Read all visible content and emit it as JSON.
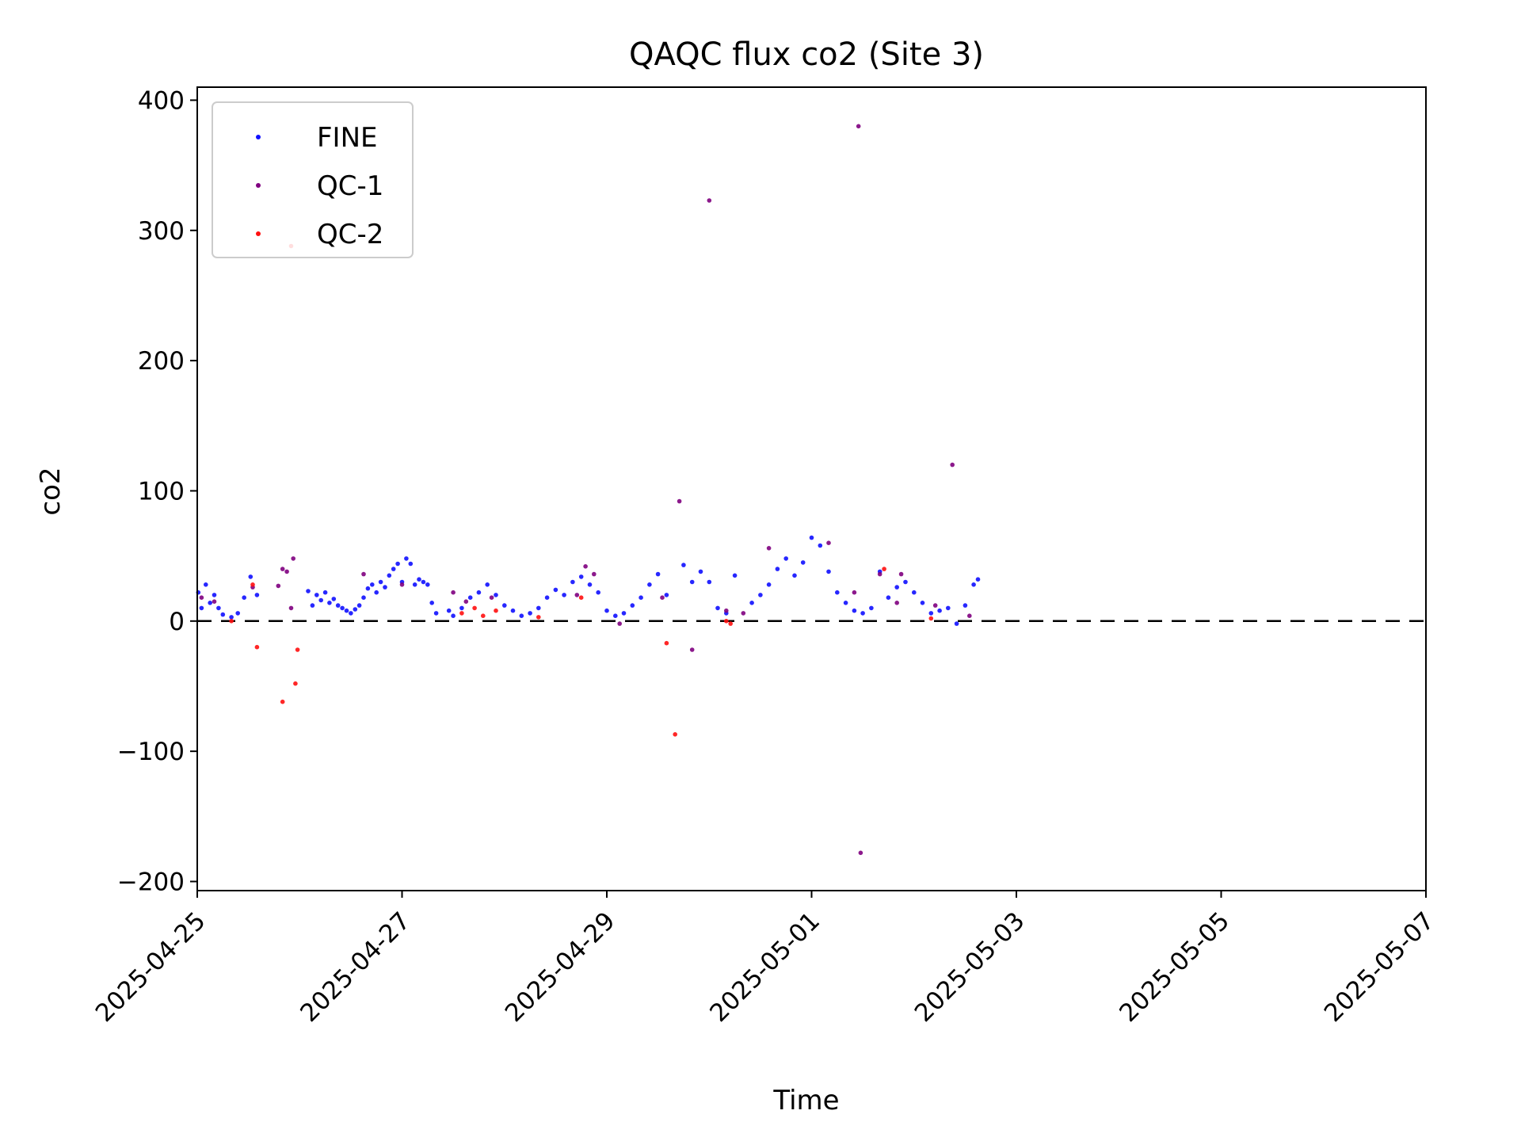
{
  "chart_data": {
    "type": "scatter",
    "title": "QAQC flux co2 (Site 3)",
    "xlabel": "Time",
    "ylabel": "co2",
    "x_type": "date",
    "xlim": [
      "2025-04-25T00:00",
      "2025-05-07T00:00"
    ],
    "ylim": [
      -207,
      410
    ],
    "x_ticks": [
      "2025-04-25",
      "2025-04-27",
      "2025-04-29",
      "2025-05-01",
      "2025-05-03",
      "2025-05-05",
      "2025-05-07"
    ],
    "y_ticks": [
      -200,
      -100,
      0,
      100,
      200,
      300,
      400
    ],
    "y_tick_labels": [
      "−200",
      "−100",
      "0",
      "100",
      "200",
      "300",
      "400"
    ],
    "grid": false,
    "legend_position": "top-left",
    "reference_line": {
      "y": 0,
      "style": "dashed",
      "color": "#000000"
    },
    "series": [
      {
        "name": "FINE",
        "color": "#1010ff",
        "points": [
          [
            "2025-04-25T00:15",
            22
          ],
          [
            "2025-04-25T01:00",
            10
          ],
          [
            "2025-04-25T02:00",
            28
          ],
          [
            "2025-04-25T03:00",
            14
          ],
          [
            "2025-04-25T04:00",
            20
          ],
          [
            "2025-04-25T05:00",
            10
          ],
          [
            "2025-04-25T06:00",
            5
          ],
          [
            "2025-04-25T08:00",
            3
          ],
          [
            "2025-04-25T09:30",
            6
          ],
          [
            "2025-04-25T11:00",
            18
          ],
          [
            "2025-04-25T12:30",
            34
          ],
          [
            "2025-04-25T14:00",
            20
          ],
          [
            "2025-04-26T02:00",
            23
          ],
          [
            "2025-04-26T03:00",
            12
          ],
          [
            "2025-04-26T04:00",
            20
          ],
          [
            "2025-04-26T05:00",
            16
          ],
          [
            "2025-04-26T06:00",
            22
          ],
          [
            "2025-04-26T07:00",
            14
          ],
          [
            "2025-04-26T08:00",
            17
          ],
          [
            "2025-04-26T09:00",
            12
          ],
          [
            "2025-04-26T10:00",
            10
          ],
          [
            "2025-04-26T11:00",
            8
          ],
          [
            "2025-04-26T12:00",
            6
          ],
          [
            "2025-04-26T13:00",
            9
          ],
          [
            "2025-04-26T14:00",
            12
          ],
          [
            "2025-04-26T15:00",
            18
          ],
          [
            "2025-04-26T16:00",
            25
          ],
          [
            "2025-04-26T17:00",
            28
          ],
          [
            "2025-04-26T18:00",
            22
          ],
          [
            "2025-04-26T19:00",
            30
          ],
          [
            "2025-04-26T20:00",
            26
          ],
          [
            "2025-04-26T21:00",
            35
          ],
          [
            "2025-04-26T22:00",
            40
          ],
          [
            "2025-04-26T23:00",
            44
          ],
          [
            "2025-04-27T00:00",
            30
          ],
          [
            "2025-04-27T01:00",
            48
          ],
          [
            "2025-04-27T02:00",
            44
          ],
          [
            "2025-04-27T03:00",
            28
          ],
          [
            "2025-04-27T04:00",
            32
          ],
          [
            "2025-04-27T05:00",
            30
          ],
          [
            "2025-04-27T06:00",
            28
          ],
          [
            "2025-04-27T07:00",
            14
          ],
          [
            "2025-04-27T08:00",
            6
          ],
          [
            "2025-04-27T11:00",
            8
          ],
          [
            "2025-04-27T12:00",
            4
          ],
          [
            "2025-04-27T14:00",
            10
          ],
          [
            "2025-04-27T16:00",
            18
          ],
          [
            "2025-04-27T18:00",
            22
          ],
          [
            "2025-04-27T20:00",
            28
          ],
          [
            "2025-04-27T22:00",
            20
          ],
          [
            "2025-04-28T00:00",
            12
          ],
          [
            "2025-04-28T02:00",
            8
          ],
          [
            "2025-04-28T04:00",
            4
          ],
          [
            "2025-04-28T06:00",
            6
          ],
          [
            "2025-04-28T08:00",
            10
          ],
          [
            "2025-04-28T10:00",
            18
          ],
          [
            "2025-04-28T12:00",
            24
          ],
          [
            "2025-04-28T14:00",
            20
          ],
          [
            "2025-04-28T16:00",
            30
          ],
          [
            "2025-04-28T18:00",
            34
          ],
          [
            "2025-04-28T20:00",
            28
          ],
          [
            "2025-04-28T22:00",
            22
          ],
          [
            "2025-04-29T00:00",
            8
          ],
          [
            "2025-04-29T02:00",
            4
          ],
          [
            "2025-04-29T04:00",
            6
          ],
          [
            "2025-04-29T06:00",
            12
          ],
          [
            "2025-04-29T08:00",
            18
          ],
          [
            "2025-04-29T10:00",
            28
          ],
          [
            "2025-04-29T12:00",
            36
          ],
          [
            "2025-04-29T14:00",
            20
          ],
          [
            "2025-04-29T18:00",
            43
          ],
          [
            "2025-04-29T20:00",
            30
          ],
          [
            "2025-04-29T22:00",
            38
          ],
          [
            "2025-04-30T00:00",
            30
          ],
          [
            "2025-04-30T02:00",
            10
          ],
          [
            "2025-04-30T04:00",
            6
          ],
          [
            "2025-04-30T06:00",
            35
          ],
          [
            "2025-04-30T10:00",
            14
          ],
          [
            "2025-04-30T12:00",
            20
          ],
          [
            "2025-04-30T14:00",
            28
          ],
          [
            "2025-04-30T16:00",
            40
          ],
          [
            "2025-04-30T18:00",
            48
          ],
          [
            "2025-04-30T20:00",
            35
          ],
          [
            "2025-04-30T22:00",
            45
          ],
          [
            "2025-05-01T00:00",
            64
          ],
          [
            "2025-05-01T02:00",
            58
          ],
          [
            "2025-05-01T04:00",
            38
          ],
          [
            "2025-05-01T06:00",
            22
          ],
          [
            "2025-05-01T08:00",
            14
          ],
          [
            "2025-05-01T10:00",
            8
          ],
          [
            "2025-05-01T12:00",
            6
          ],
          [
            "2025-05-01T14:00",
            10
          ],
          [
            "2025-05-01T16:00",
            38
          ],
          [
            "2025-05-01T18:00",
            18
          ],
          [
            "2025-05-01T20:00",
            26
          ],
          [
            "2025-05-01T22:00",
            30
          ],
          [
            "2025-05-02T00:00",
            22
          ],
          [
            "2025-05-02T02:00",
            14
          ],
          [
            "2025-05-02T04:00",
            6
          ],
          [
            "2025-05-02T06:00",
            8
          ],
          [
            "2025-05-02T08:00",
            10
          ],
          [
            "2025-05-02T10:00",
            -2
          ],
          [
            "2025-05-02T12:00",
            12
          ],
          [
            "2025-05-02T14:00",
            28
          ],
          [
            "2025-05-02T15:00",
            32
          ]
        ]
      },
      {
        "name": "QC-1",
        "color": "#800080",
        "points": [
          [
            "2025-04-25T01:00",
            18
          ],
          [
            "2025-04-25T04:00",
            15
          ],
          [
            "2025-04-25T13:00",
            26
          ],
          [
            "2025-04-25T19:00",
            27
          ],
          [
            "2025-04-25T20:00",
            40
          ],
          [
            "2025-04-25T21:00",
            38
          ],
          [
            "2025-04-25T22:00",
            10
          ],
          [
            "2025-04-25T22:30",
            48
          ],
          [
            "2025-04-26T15:00",
            36
          ],
          [
            "2025-04-27T00:00",
            28
          ],
          [
            "2025-04-27T12:00",
            22
          ],
          [
            "2025-04-27T15:00",
            15
          ],
          [
            "2025-04-27T21:00",
            18
          ],
          [
            "2025-04-28T17:00",
            20
          ],
          [
            "2025-04-28T19:00",
            42
          ],
          [
            "2025-04-28T21:00",
            36
          ],
          [
            "2025-04-29T03:00",
            -2
          ],
          [
            "2025-04-29T13:00",
            18
          ],
          [
            "2025-04-29T17:00",
            92
          ],
          [
            "2025-04-29T20:00",
            -22
          ],
          [
            "2025-04-30T00:00",
            323
          ],
          [
            "2025-04-30T04:00",
            8
          ],
          [
            "2025-04-30T08:00",
            6
          ],
          [
            "2025-04-30T14:00",
            56
          ],
          [
            "2025-05-01T04:00",
            60
          ],
          [
            "2025-05-01T10:00",
            22
          ],
          [
            "2025-05-01T11:00",
            380
          ],
          [
            "2025-05-01T11:30",
            -178
          ],
          [
            "2025-05-01T16:00",
            36
          ],
          [
            "2025-05-01T20:00",
            14
          ],
          [
            "2025-05-01T21:00",
            36
          ],
          [
            "2025-05-02T05:00",
            12
          ],
          [
            "2025-05-02T09:00",
            120
          ],
          [
            "2025-05-02T13:00",
            4
          ]
        ]
      },
      {
        "name": "QC-2",
        "color": "#ff1010",
        "points": [
          [
            "2025-04-25T08:00",
            0
          ],
          [
            "2025-04-25T13:00",
            28
          ],
          [
            "2025-04-25T14:00",
            -20
          ],
          [
            "2025-04-25T20:00",
            -62
          ],
          [
            "2025-04-25T22:00",
            288
          ],
          [
            "2025-04-25T23:00",
            -48
          ],
          [
            "2025-04-25T23:30",
            -22
          ],
          [
            "2025-04-27T14:00",
            6
          ],
          [
            "2025-04-27T17:00",
            10
          ],
          [
            "2025-04-27T19:00",
            4
          ],
          [
            "2025-04-27T22:00",
            8
          ],
          [
            "2025-04-28T08:00",
            3
          ],
          [
            "2025-04-28T18:00",
            18
          ],
          [
            "2025-04-29T14:00",
            -17
          ],
          [
            "2025-04-29T16:00",
            -87
          ],
          [
            "2025-04-30T04:00",
            0
          ],
          [
            "2025-04-30T05:00",
            -2
          ],
          [
            "2025-05-01T17:00",
            40
          ],
          [
            "2025-05-02T04:00",
            2
          ]
        ]
      }
    ]
  }
}
